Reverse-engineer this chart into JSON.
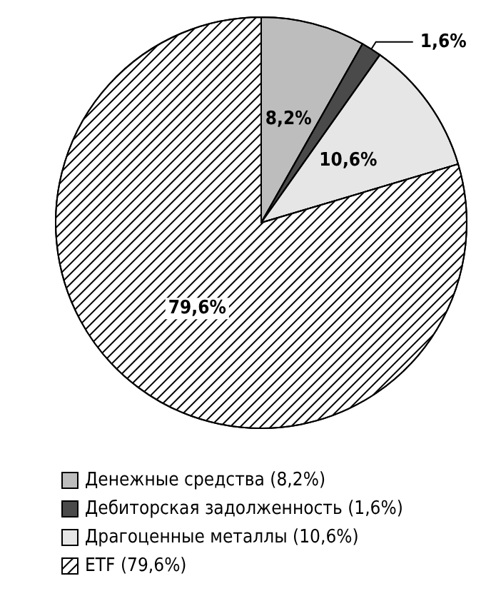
{
  "chart_data": {
    "type": "pie",
    "categories": [
      "Денежные средства (8,2%)",
      "Дебиторская задолженность (1,6%)",
      "Драгоценные металлы (10,6%)",
      "ETF (79,6%)"
    ],
    "values": [
      8.2,
      1.6,
      10.6,
      79.6
    ],
    "colors": [
      "#bdbdbd",
      "#4a4a4a",
      "#e6e6e6",
      "#ffffff"
    ],
    "value_labels": [
      "8,2%",
      "1,6%",
      "10,6%",
      "79,6%"
    ],
    "legend": "bottom left"
  }
}
